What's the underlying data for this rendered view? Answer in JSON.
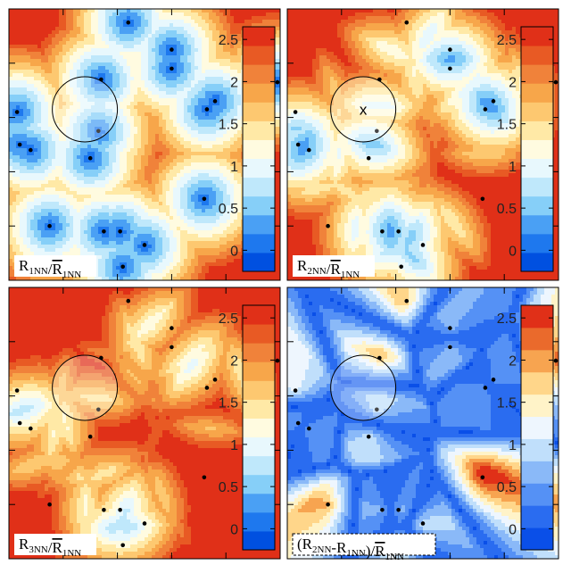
{
  "chart_data": {
    "type": "heatmap",
    "layout": "2x2 grid of contour maps, each with its own vertical colorbar",
    "colorbar_ticks": [
      "0",
      "0.5",
      "1",
      "1.5",
      "2",
      "2.5"
    ],
    "colorbar_range": [
      -0.25,
      2.65
    ],
    "points": [
      [
        0.44,
        0.05
      ],
      [
        0.6,
        0.15
      ],
      [
        0.6,
        0.22
      ],
      [
        0.99,
        0.27
      ],
      [
        0.34,
        0.26
      ],
      [
        0.76,
        0.34
      ],
      [
        0.73,
        0.37
      ],
      [
        0.03,
        0.38
      ],
      [
        0.33,
        0.45
      ],
      [
        0.04,
        0.5
      ],
      [
        0.08,
        0.52
      ],
      [
        0.3,
        0.55
      ],
      [
        0.72,
        0.7
      ],
      [
        0.15,
        0.8
      ],
      [
        0.35,
        0.82
      ],
      [
        0.41,
        0.82
      ],
      [
        0.5,
        0.87
      ],
      [
        0.42,
        0.95
      ]
    ],
    "circle": {
      "cx": 0.28,
      "cy": 0.37,
      "r": 0.12
    },
    "panels": [
      {
        "label_main": "R",
        "label_sub": "1NN",
        "label_post": "/",
        "label_den_main": "R",
        "label_den_sub": "1NN",
        "label_pre": "",
        "marker": ""
      },
      {
        "label_main": "R",
        "label_sub": "2NN",
        "label_post": "/",
        "label_den_main": "R",
        "label_den_sub": "1NN",
        "label_pre": "",
        "marker": "x"
      },
      {
        "label_main": "R",
        "label_sub": "3NN",
        "label_post": "/",
        "label_den_main": "R",
        "label_den_sub": "1NN",
        "label_pre": "",
        "marker": ""
      },
      {
        "label_main": "R",
        "label_sub": "2NN",
        "label_post": "-R",
        "label_post_sub": "1NN",
        "label_close": ")/",
        "label_den_main": "R",
        "label_den_sub": "1NN",
        "label_pre": "(",
        "marker": ""
      }
    ],
    "colors": {
      "palette_standard": [
        "#0050e0",
        "#1e78ee",
        "#4aa0f4",
        "#86cff8",
        "#bfe8fb",
        "#e8f8fd",
        "#fffbe0",
        "#ffe9a6",
        "#fdc870",
        "#f7a64a",
        "#f0823a",
        "#e85a24",
        "#e03018"
      ],
      "palette_difference": [
        "#0a4fe8",
        "#2a6cf0",
        "#5591f5",
        "#8ab9f8",
        "#c0dffb",
        "#eef6fe",
        "#fff3c8",
        "#ffd68a",
        "#f7a450",
        "#ea6a2c",
        "#e03018"
      ]
    }
  }
}
